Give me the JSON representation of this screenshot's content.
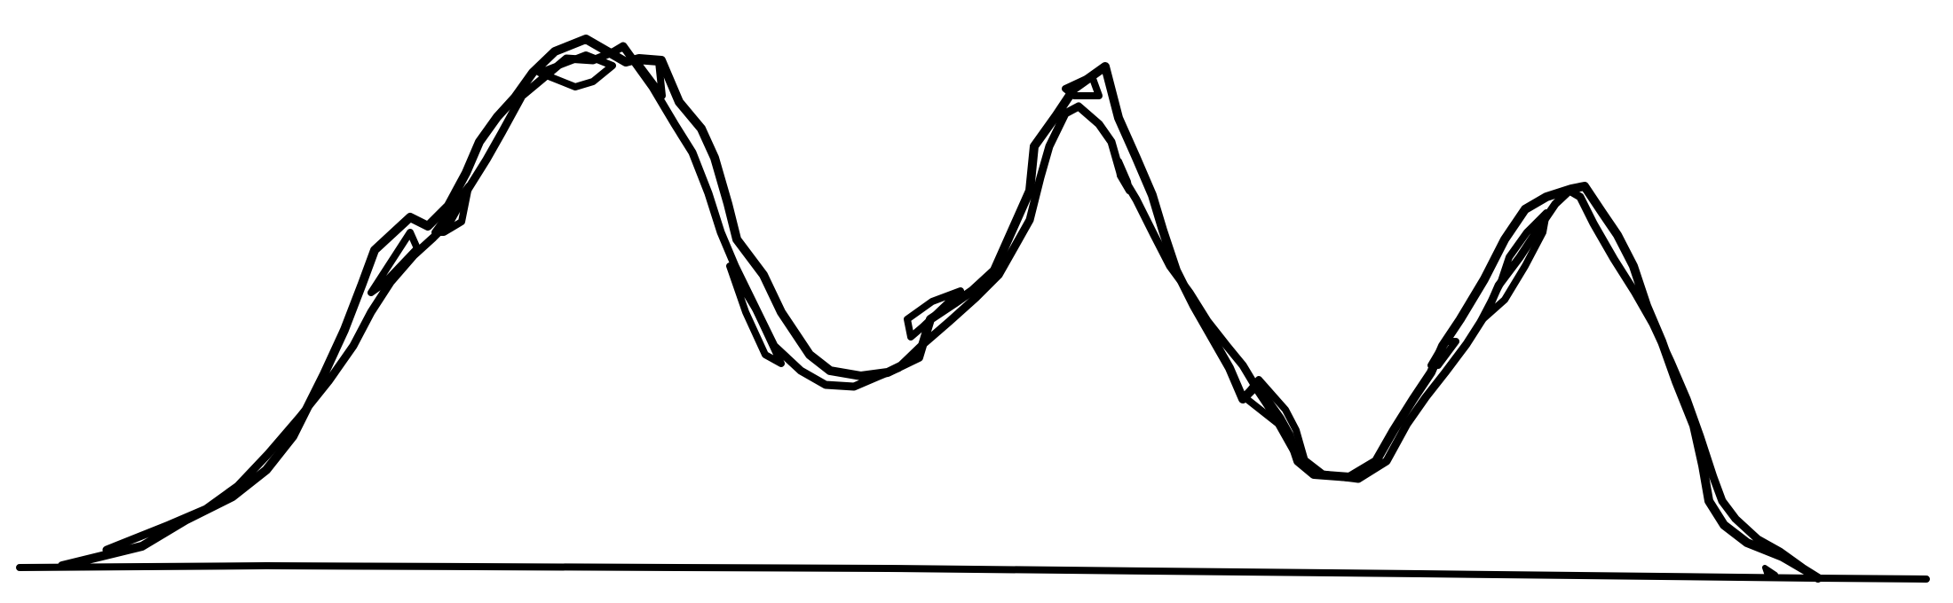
{
  "figure": {
    "kind": "hand-drawn outline of a three-peaked curve above a horizontal baseline",
    "stroke_color": "#000000",
    "background_color": "#ffffff"
  }
}
